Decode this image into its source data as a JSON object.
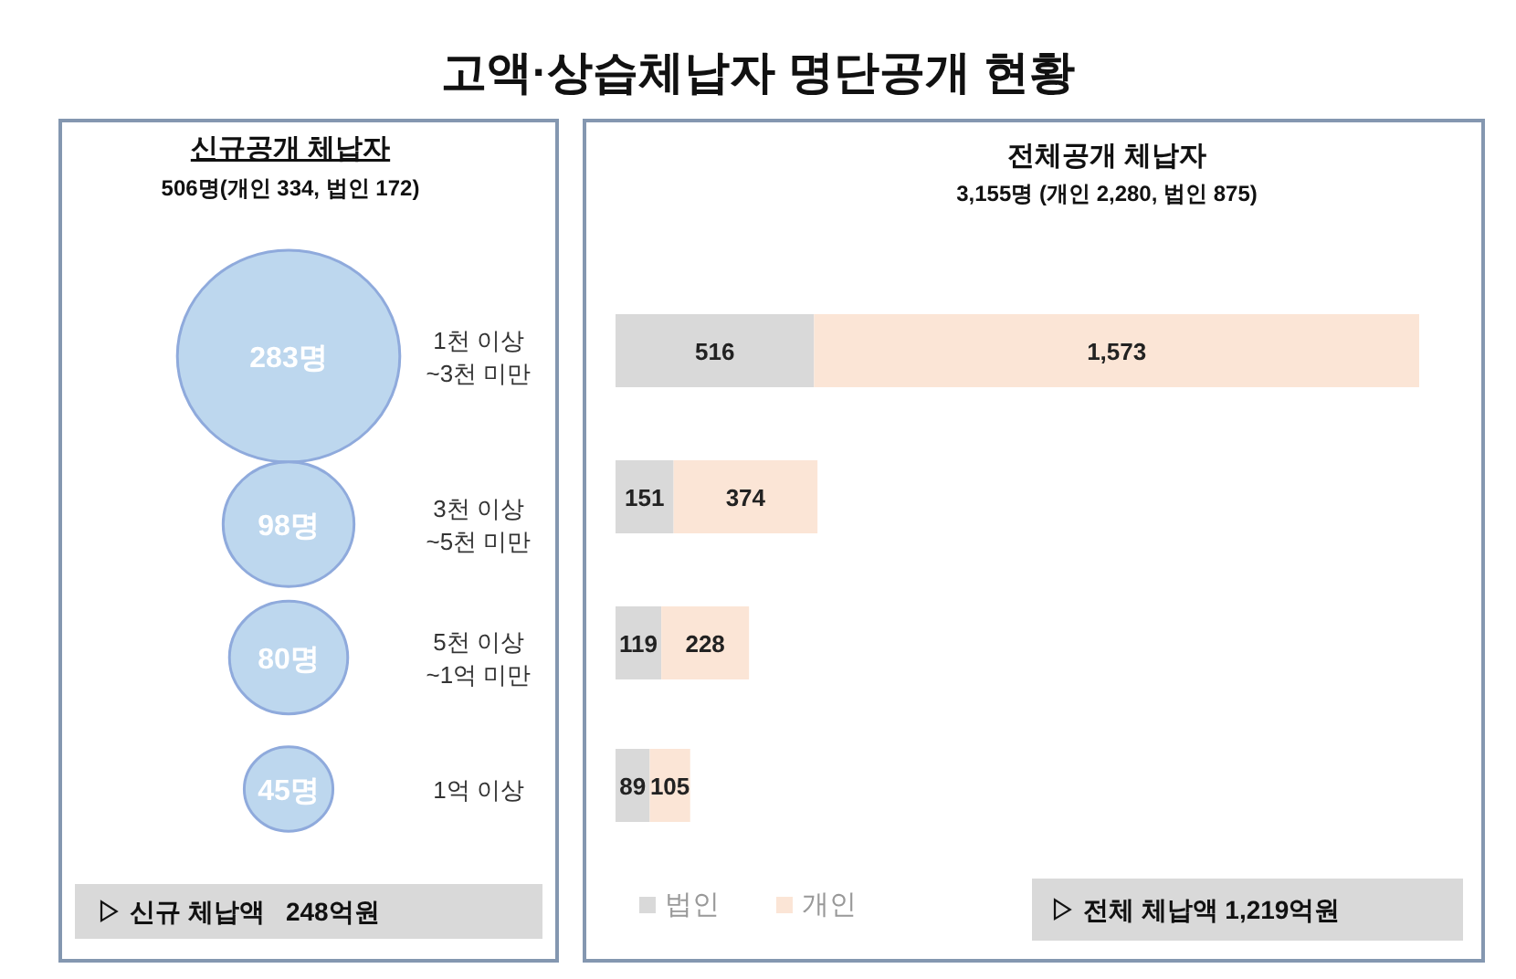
{
  "chart_data": [
    {
      "type": "other",
      "title": "고액·상습체납자 명단공개 현황"
    },
    {
      "type": "other",
      "title": "신규공개 체납자",
      "subtitle": "506명(개인 334, 법인 172)",
      "categories": [
        "1천 이상\n~3천 미만",
        "3천 이상\n~5천 미만",
        "5천 이상\n~1억 미만",
        "1억 이상"
      ],
      "values": [
        283,
        98,
        80,
        45
      ],
      "value_labels": [
        "283명",
        "98명",
        "80명",
        "45명"
      ],
      "color": "#bdd7ee",
      "annotations": [
        "▷ 신규 체납액   248억원"
      ]
    },
    {
      "type": "bar",
      "orientation": "horizontal",
      "stacked": true,
      "title": "전체공개 체납자",
      "subtitle": "3,155명 (개인 2,280, 법인 875)",
      "categories": [
        null,
        null,
        null,
        null
      ],
      "series": [
        {
          "name": "법인",
          "color": "#d9d9d9",
          "values": [
            516,
            151,
            119,
            89
          ],
          "value_labels": [
            "516",
            "151",
            "119",
            "89"
          ]
        },
        {
          "name": "개인",
          "color": "#fbe5d6",
          "values": [
            1573,
            374,
            228,
            105
          ],
          "value_labels": [
            "1,573",
            "374",
            "228",
            "105"
          ]
        }
      ],
      "data_labels": true,
      "legend": "bottom left",
      "annotations": [
        "▷ 전체 체납액 1,219억원"
      ]
    }
  ]
}
